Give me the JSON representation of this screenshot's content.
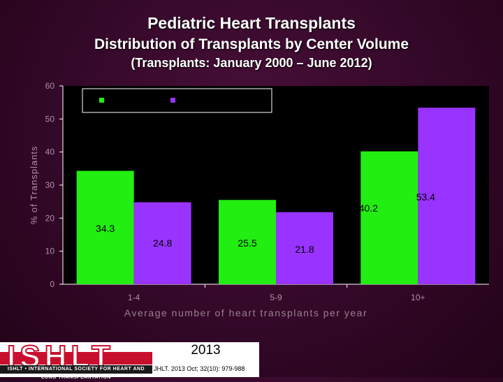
{
  "header": {
    "title": "Pediatric Heart Transplants",
    "subtitle": "Distribution of Transplants by Center Volume",
    "period": "(Transplants: January  2000 – June 2012)"
  },
  "chart_data": {
    "type": "bar",
    "categories": [
      "1-4",
      "5-9",
      "10+"
    ],
    "series": [
      {
        "name": "",
        "color": "#22ee11",
        "values": [
          34.3,
          25.5,
          40.2
        ]
      },
      {
        "name": "",
        "color": "#9933ff",
        "values": [
          24.8,
          21.8,
          53.4
        ]
      }
    ],
    "data_labels": [
      [
        "34.3",
        "25.5",
        "40.2"
      ],
      [
        "24.8",
        "21.8",
        "53.4"
      ]
    ],
    "xlabel": "Average number of heart transplants per year",
    "ylabel": "% of Transplants",
    "y_ticks": [
      "0",
      "10",
      "20",
      "30",
      "40",
      "50",
      "60"
    ],
    "ylim": [
      0,
      60
    ],
    "legend_position": "top-left",
    "grid": false
  },
  "footer": {
    "logo": "ISHLT",
    "logo_tagline": "ISHLT • INTERNATIONAL SOCIETY FOR HEART AND LUNG TRANSPLANTATION",
    "year": "2013",
    "citation": "JHLT. 2013 Oct; 32(10): 979-988"
  }
}
